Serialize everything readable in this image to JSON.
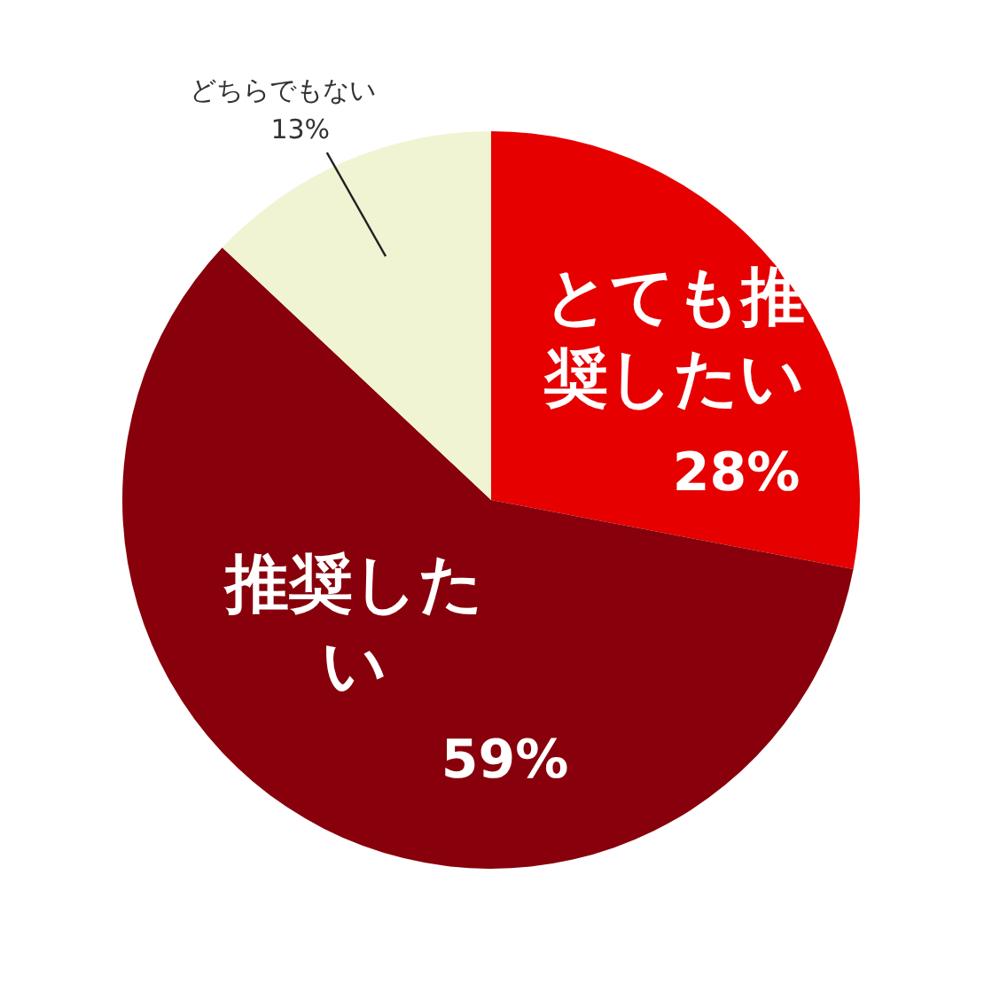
{
  "chart_data": {
    "type": "pie",
    "categories": [
      "とても推奨したい",
      "推奨したい",
      "どちらでもない"
    ],
    "values": [
      28,
      59,
      13
    ],
    "value_labels": [
      "28%",
      "59%",
      "13%"
    ],
    "colors": [
      "#e60000",
      "#87000b",
      "#f1f4d3"
    ],
    "legend": false
  }
}
